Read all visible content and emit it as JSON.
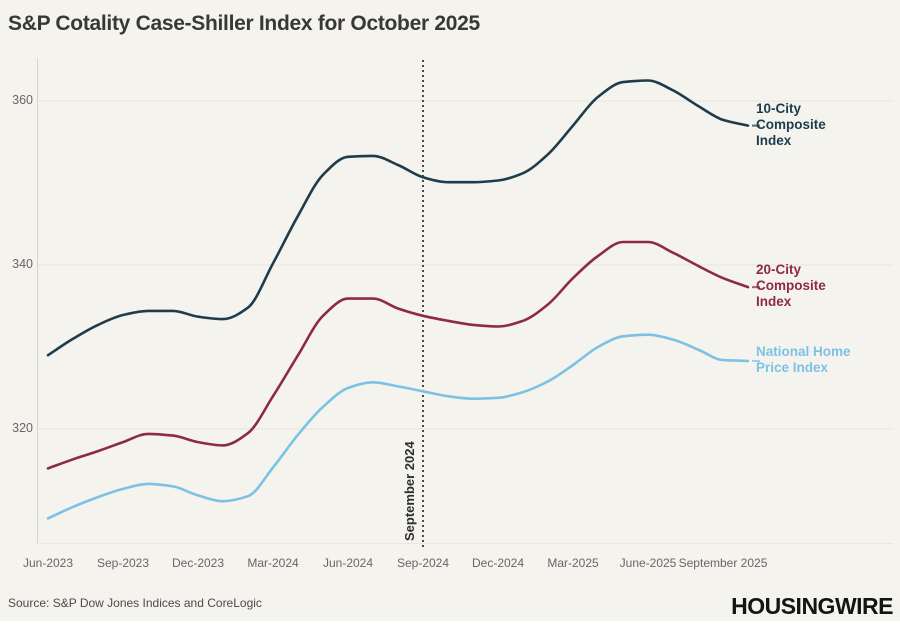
{
  "page": {
    "title": "S&P Cotality Case-Shiller Index for October 2025",
    "source": "Source: S&P Dow Jones Indices and CoreLogic",
    "brand": "HOUSINGWIRE",
    "background": "#f5f3ee"
  },
  "chart_data": {
    "type": "line",
    "title": "S&P Cotality Case-Shiller Index for October 2025",
    "x": [
      "Jun-2023",
      "Jul-2023",
      "Aug-2023",
      "Sep-2023",
      "Oct-2023",
      "Nov-2023",
      "Dec-2023",
      "Jan-2024",
      "Feb-2024",
      "Mar-2024",
      "Apr-2024",
      "May-2024",
      "Jun-2024",
      "Jul-2024",
      "Aug-2024",
      "Sep-2024",
      "Oct-2024",
      "Nov-2024",
      "Dec-2024",
      "Jan-2025",
      "Feb-2025",
      "Mar-2025",
      "Apr-2025",
      "May-2025",
      "Jun-2025",
      "Jul-2025",
      "Aug-2025",
      "Sep-2025",
      "Oct-2025"
    ],
    "series": [
      {
        "name": "10-City Composite Index",
        "label_lines": "10-City\nComposite\nIndex",
        "color": "#1d3c4c",
        "values": [
          329.0,
          331.0,
          332.7,
          333.9,
          334.4,
          334.4,
          333.7,
          333.4,
          334.8,
          340.2,
          346.0,
          351.0,
          353.2,
          353.3,
          352.2,
          350.7,
          350.1,
          350.1,
          350.3,
          351.2,
          353.5,
          357.0,
          360.5,
          362.3,
          362.5,
          361.3,
          359.4,
          357.7,
          357.0
        ]
      },
      {
        "name": "20-City Composite Index",
        "label_lines": "20-City\nComposite\nIndex",
        "color": "#8d2c3e",
        "values": [
          315.2,
          316.3,
          317.3,
          318.4,
          319.4,
          319.2,
          318.4,
          318.0,
          319.5,
          324.0,
          329.0,
          333.8,
          335.9,
          335.9,
          334.7,
          333.8,
          333.2,
          332.7,
          332.5,
          333.2,
          335.2,
          338.4,
          341.1,
          342.8,
          342.8,
          341.5,
          339.9,
          338.4,
          337.3
        ]
      },
      {
        "name": "National Home Price Index",
        "label_lines": "National Home\nPrice Index",
        "color": "#7cc2e5",
        "values": [
          309.1,
          310.5,
          311.7,
          312.7,
          313.3,
          313.0,
          311.9,
          311.2,
          311.8,
          315.3,
          319.3,
          322.7,
          325.0,
          325.7,
          325.2,
          324.6,
          324.0,
          323.7,
          323.8,
          324.5,
          325.8,
          327.8,
          330.0,
          331.3,
          331.5,
          330.9,
          329.7,
          328.4,
          328.3
        ]
      }
    ],
    "yticks": [
      360,
      340,
      320
    ],
    "ylim": [
      306,
      365.5
    ],
    "xtick_labels": [
      {
        "index": 0,
        "label": "Jun-2023"
      },
      {
        "index": 3,
        "label": "Sep-2023"
      },
      {
        "index": 6,
        "label": "Dec-2023"
      },
      {
        "index": 9,
        "label": "Mar-2024"
      },
      {
        "index": 12,
        "label": "Jun-2024"
      },
      {
        "index": 15,
        "label": "Sep-2024"
      },
      {
        "index": 18,
        "label": "Dec-2024"
      },
      {
        "index": 21,
        "label": "Mar-2025"
      },
      {
        "index": 24,
        "label": "June-2025"
      },
      {
        "index": 27,
        "label": "September 2025"
      }
    ],
    "annotation": {
      "label": "September 2024",
      "x_index": 15
    },
    "grid": "horizontal",
    "legend_position": "right",
    "colors": {
      "grid": "#eae7e0",
      "axis": "#d8d5cc",
      "vline": "#202020",
      "tick_text": "#666666"
    }
  }
}
